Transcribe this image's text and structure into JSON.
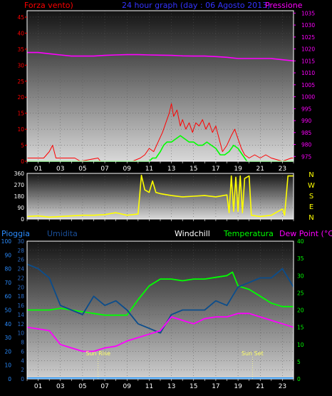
{
  "header": {
    "left_label": "Forza vento)",
    "center_title": "24 hour graph (day : 06 Agosto 2013)",
    "right_label": "Pressione"
  },
  "colors": {
    "wind": "#ff0000",
    "gust": "#ff0000",
    "pressure": "#ff00ff",
    "wind_avg": "#00ff00",
    "direction": "#ffff00",
    "humidity": "#0b4d8c",
    "temperature": "#00ff00",
    "dewpoint": "#ff00ff",
    "rain": "#0088ff",
    "title": "#3333ff",
    "frame": "#ffffff"
  },
  "chart_data": [
    {
      "type": "line",
      "name_note": "wind and pressure panel",
      "x_ticks": [
        "01",
        "03",
        "05",
        "07",
        "09",
        "11",
        "13",
        "15",
        "17",
        "19",
        "21",
        "23"
      ],
      "xlim": [
        0,
        24
      ],
      "y_left": {
        "ticks": [
          0,
          5,
          10,
          15,
          20,
          25,
          30,
          35,
          40,
          45
        ],
        "ylim": [
          0,
          47
        ]
      },
      "y_right": {
        "ticks": [
          975,
          980,
          985,
          990,
          995,
          1000,
          1005,
          1010,
          1015,
          1020,
          1025,
          1030,
          1035
        ],
        "ylim": [
          973,
          1036
        ]
      },
      "series": [
        {
          "key": "gust",
          "axis": "left",
          "points": [
            [
              0,
              1
            ],
            [
              1.5,
              1
            ],
            [
              2,
              3
            ],
            [
              2.3,
              5
            ],
            [
              2.6,
              1
            ],
            [
              3,
              1
            ],
            [
              4.3,
              1
            ],
            [
              4.8,
              0
            ],
            [
              6.4,
              1
            ],
            [
              6.6,
              0
            ],
            [
              7.2,
              0
            ],
            [
              8.2,
              0
            ],
            [
              9.5,
              0
            ],
            [
              10.2,
              1
            ],
            [
              10.6,
              2
            ],
            [
              11,
              4
            ],
            [
              11.4,
              3
            ],
            [
              11.8,
              6
            ],
            [
              12.2,
              9
            ],
            [
              12.5,
              12
            ],
            [
              12.8,
              15
            ],
            [
              13,
              18
            ],
            [
              13.2,
              14
            ],
            [
              13.5,
              16
            ],
            [
              13.8,
              11
            ],
            [
              14,
              13
            ],
            [
              14.3,
              10
            ],
            [
              14.6,
              12
            ],
            [
              14.9,
              9
            ],
            [
              15.2,
              12
            ],
            [
              15.5,
              11
            ],
            [
              15.8,
              13
            ],
            [
              16.1,
              10
            ],
            [
              16.4,
              12
            ],
            [
              16.7,
              9
            ],
            [
              17,
              11
            ],
            [
              17.3,
              7
            ],
            [
              17.6,
              3
            ],
            [
              18,
              5
            ],
            [
              18.4,
              8
            ],
            [
              18.7,
              10
            ],
            [
              19,
              7
            ],
            [
              19.3,
              4
            ],
            [
              19.6,
              2
            ],
            [
              20,
              1
            ],
            [
              20.5,
              2
            ],
            [
              21,
              1
            ],
            [
              21.5,
              2
            ],
            [
              22,
              1
            ],
            [
              23,
              0
            ],
            [
              23.8,
              1
            ],
            [
              24,
              1
            ]
          ]
        },
        {
          "key": "wind_avg",
          "axis": "left",
          "points": [
            [
              0,
              0
            ],
            [
              11,
              0
            ],
            [
              11.3,
              1
            ],
            [
              11.6,
              1
            ],
            [
              12,
              3
            ],
            [
              12.3,
              5
            ],
            [
              12.6,
              6
            ],
            [
              13,
              6
            ],
            [
              13.4,
              7
            ],
            [
              13.8,
              8
            ],
            [
              14.2,
              7
            ],
            [
              14.6,
              6
            ],
            [
              15,
              6
            ],
            [
              15.4,
              5
            ],
            [
              15.8,
              5
            ],
            [
              16.2,
              6
            ],
            [
              16.6,
              5
            ],
            [
              17,
              4
            ],
            [
              17.4,
              2
            ],
            [
              17.8,
              2
            ],
            [
              18.2,
              3
            ],
            [
              18.6,
              5
            ],
            [
              19,
              4
            ],
            [
              19.4,
              2
            ],
            [
              19.8,
              0
            ],
            [
              24,
              0
            ]
          ]
        },
        {
          "key": "pressure",
          "axis": "right",
          "points": [
            [
              0,
              1018.5
            ],
            [
              1,
              1018.5
            ],
            [
              2,
              1018
            ],
            [
              3,
              1017.5
            ],
            [
              4,
              1017
            ],
            [
              5,
              1017
            ],
            [
              6,
              1017
            ],
            [
              7,
              1017.3
            ],
            [
              8,
              1017.5
            ],
            [
              9,
              1017.6
            ],
            [
              10,
              1017.6
            ],
            [
              11,
              1017.5
            ],
            [
              12,
              1017.4
            ],
            [
              13,
              1017.3
            ],
            [
              14,
              1017.1
            ],
            [
              15,
              1017
            ],
            [
              16,
              1017
            ],
            [
              17,
              1016.8
            ],
            [
              18,
              1016.5
            ],
            [
              19,
              1016
            ],
            [
              20,
              1016
            ],
            [
              21,
              1016
            ],
            [
              22,
              1016
            ],
            [
              23,
              1015.5
            ],
            [
              24,
              1015
            ]
          ]
        }
      ]
    },
    {
      "type": "line",
      "name_note": "wind direction panel",
      "x_ticks": [
        "01",
        "03",
        "05",
        "07",
        "09",
        "11",
        "13",
        "15",
        "17",
        "19",
        "21",
        "23"
      ],
      "xlim": [
        0,
        24
      ],
      "y_left": {
        "ticks": [
          0,
          90,
          180,
          270,
          360
        ],
        "ylim": [
          0,
          360
        ]
      },
      "y_right_labels": [
        "N",
        "W",
        "S",
        "E",
        "N"
      ],
      "series": [
        {
          "key": "direction",
          "axis": "left",
          "points": [
            [
              0,
              20
            ],
            [
              1,
              25
            ],
            [
              2,
              15
            ],
            [
              3,
              20
            ],
            [
              4,
              25
            ],
            [
              5,
              30
            ],
            [
              6,
              30
            ],
            [
              7,
              35
            ],
            [
              8,
              50
            ],
            [
              9,
              30
            ],
            [
              10,
              40
            ],
            [
              10.3,
              345
            ],
            [
              10.6,
              230
            ],
            [
              11,
              210
            ],
            [
              11.3,
              300
            ],
            [
              11.6,
              210
            ],
            [
              12,
              200
            ],
            [
              13,
              185
            ],
            [
              14,
              175
            ],
            [
              15,
              180
            ],
            [
              16,
              185
            ],
            [
              17,
              175
            ],
            [
              18,
              190
            ],
            [
              18.2,
              50
            ],
            [
              18.4,
              340
            ],
            [
              18.6,
              60
            ],
            [
              18.8,
              330
            ],
            [
              19,
              60
            ],
            [
              19.2,
              340
            ],
            [
              19.4,
              50
            ],
            [
              19.6,
              320
            ],
            [
              20,
              340
            ],
            [
              20.2,
              30
            ],
            [
              21,
              20
            ],
            [
              22,
              30
            ],
            [
              23,
              80
            ],
            [
              23.2,
              30
            ],
            [
              23.5,
              340
            ],
            [
              24,
              340
            ]
          ]
        }
      ]
    },
    {
      "type": "line",
      "name_note": "rain, humidity, windchill, temperature and dew point panel",
      "legend": [
        "Pioggia",
        "Umidita",
        "Windchill",
        "Temperatura",
        "Dew Point (°C)"
      ],
      "x_ticks": [
        "01",
        "03",
        "05",
        "07",
        "09",
        "11",
        "13",
        "15",
        "17",
        "19",
        "21",
        "23"
      ],
      "xlim": [
        0,
        24
      ],
      "y_rain": {
        "ticks": [
          0,
          10,
          20,
          30,
          40,
          50,
          60,
          70,
          80,
          90,
          100
        ],
        "ylim": [
          0,
          100
        ]
      },
      "y_humidity": {
        "ticks": [
          0,
          2,
          4,
          6,
          8,
          10,
          12,
          14,
          16,
          18,
          20,
          22,
          24,
          26,
          28,
          30
        ],
        "ylim": [
          0,
          30
        ]
      },
      "y_temp": {
        "ticks": [
          0,
          5,
          10,
          15,
          20,
          25,
          30,
          35,
          40
        ],
        "ylim": [
          0,
          40
        ]
      },
      "annotations": [
        {
          "label": "Sun Rise",
          "x": 6.4
        },
        {
          "label": "Sun Set",
          "x": 20.3
        }
      ],
      "series": [
        {
          "key": "temperature",
          "axis": "temp",
          "points": [
            [
              0,
              20
            ],
            [
              1,
              20
            ],
            [
              2,
              20
            ],
            [
              3,
              20.5
            ],
            [
              4,
              20
            ],
            [
              5,
              19.5
            ],
            [
              6,
              19
            ],
            [
              7,
              18.5
            ],
            [
              8,
              18.5
            ],
            [
              9,
              18.5
            ],
            [
              10,
              23
            ],
            [
              11,
              27
            ],
            [
              12,
              29
            ],
            [
              13,
              29
            ],
            [
              14,
              28.5
            ],
            [
              15,
              29
            ],
            [
              16,
              29
            ],
            [
              17,
              29.5
            ],
            [
              18,
              30
            ],
            [
              18.5,
              31
            ],
            [
              19,
              27
            ],
            [
              20,
              26
            ],
            [
              21,
              24
            ],
            [
              22,
              22
            ],
            [
              23,
              21
            ],
            [
              24,
              21
            ]
          ]
        },
        {
          "key": "humidity",
          "axis": "humidity",
          "points": [
            [
              0,
              25
            ],
            [
              1,
              24
            ],
            [
              2,
              22
            ],
            [
              3,
              16
            ],
            [
              4,
              15
            ],
            [
              5,
              14
            ],
            [
              6,
              18
            ],
            [
              7,
              16
            ],
            [
              8,
              17
            ],
            [
              9,
              15
            ],
            [
              10,
              12
            ],
            [
              11,
              11
            ],
            [
              12,
              10
            ],
            [
              13,
              14
            ],
            [
              14,
              15
            ],
            [
              15,
              15
            ],
            [
              16,
              15
            ],
            [
              17,
              17
            ],
            [
              18,
              16
            ],
            [
              18.5,
              18
            ],
            [
              19,
              20
            ],
            [
              20,
              21
            ],
            [
              21,
              22
            ],
            [
              22,
              22
            ],
            [
              23,
              24
            ],
            [
              24,
              20
            ]
          ]
        },
        {
          "key": "dewpoint",
          "axis": "temp",
          "points": [
            [
              0,
              15
            ],
            [
              1,
              14.5
            ],
            [
              2,
              14
            ],
            [
              3,
              10
            ],
            [
              4,
              9
            ],
            [
              5,
              8
            ],
            [
              6,
              8
            ],
            [
              7,
              9
            ],
            [
              8,
              9.5
            ],
            [
              9,
              11
            ],
            [
              10,
              12
            ],
            [
              11,
              13
            ],
            [
              12,
              14
            ],
            [
              13,
              18
            ],
            [
              14,
              17
            ],
            [
              15,
              16
            ],
            [
              16,
              17.5
            ],
            [
              17,
              18
            ],
            [
              18,
              18
            ],
            [
              19,
              19
            ],
            [
              20,
              19
            ],
            [
              21,
              18
            ],
            [
              22,
              17
            ],
            [
              23,
              16
            ],
            [
              24,
              15
            ]
          ]
        },
        {
          "key": "rain",
          "axis": "rain",
          "points": [
            [
              0,
              0.3
            ],
            [
              24,
              0.3
            ]
          ]
        }
      ]
    }
  ]
}
